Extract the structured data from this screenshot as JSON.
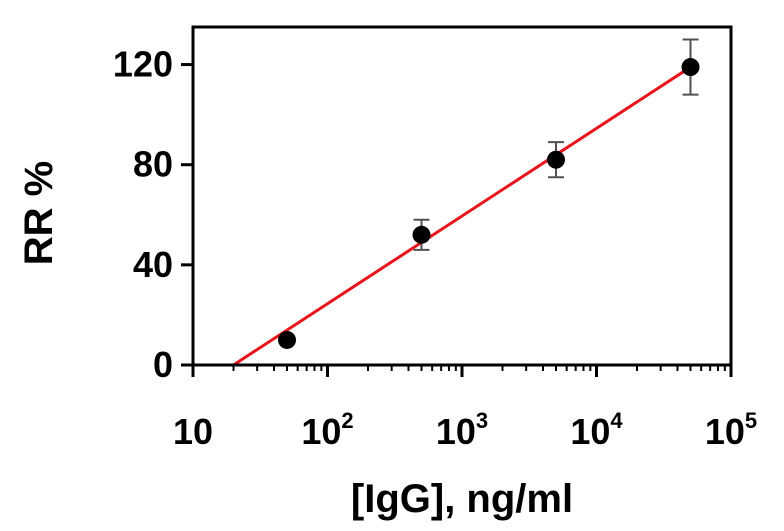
{
  "chart_data": {
    "type": "scatter",
    "xlabel": "[IgG], ng/ml",
    "ylabel": "RR %",
    "x_scale": "log",
    "xlim": [
      10,
      100000
    ],
    "ylim": [
      0,
      135
    ],
    "x_ticks": [
      {
        "value": 10,
        "base": "10",
        "exp": ""
      },
      {
        "value": 100,
        "base": "10",
        "exp": "2"
      },
      {
        "value": 1000,
        "base": "10",
        "exp": "3"
      },
      {
        "value": 10000,
        "base": "10",
        "exp": "4"
      },
      {
        "value": 100000,
        "base": "10",
        "exp": "5"
      }
    ],
    "y_ticks": [
      {
        "value": 0,
        "label": "0"
      },
      {
        "value": 40,
        "label": "40"
      },
      {
        "value": 80,
        "label": "80"
      },
      {
        "value": 120,
        "label": "120"
      }
    ],
    "points": [
      {
        "x": 50,
        "y": 10,
        "err": 0
      },
      {
        "x": 500,
        "y": 52,
        "err": 6
      },
      {
        "x": 5000,
        "y": 82,
        "err": 7
      },
      {
        "x": 50000,
        "y": 119,
        "err": 11
      }
    ],
    "fit_line": {
      "x": [
        20,
        50000
      ],
      "y": [
        0,
        119
      ]
    },
    "colors": {
      "points": "#000000",
      "fit": "#e8141b",
      "error_bars": "#505050"
    },
    "grid": false,
    "legend": "none"
  }
}
